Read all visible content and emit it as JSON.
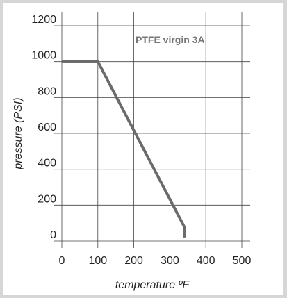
{
  "chart_data": {
    "type": "line",
    "annotation": "PTFE virgin 3A",
    "xlabel": "temperature ºF",
    "ylabel": "pressure (PSI)",
    "xlim": [
      0,
      500
    ],
    "ylim": [
      0,
      1200
    ],
    "x_ticks": [
      "0",
      "100",
      "200",
      "300",
      "400",
      "500"
    ],
    "y_ticks": [
      "0",
      "200",
      "400",
      "600",
      "800",
      "1000",
      "1200"
    ],
    "grid": true,
    "series": [
      {
        "color": "#6b6b6b",
        "points": [
          {
            "x": 0,
            "y": 1000
          },
          {
            "x": 100,
            "y": 1000
          },
          {
            "x": 340,
            "y": 80
          },
          {
            "x": 340,
            "y": 20
          }
        ]
      }
    ]
  }
}
